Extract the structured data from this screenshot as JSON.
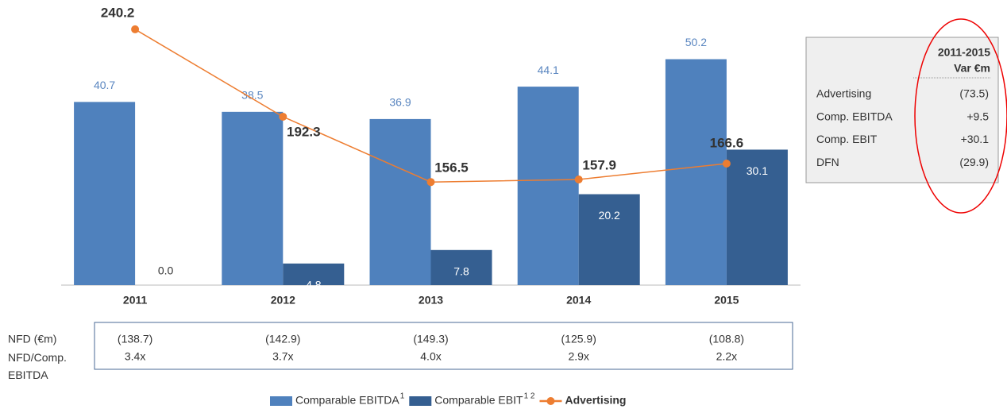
{
  "chart_data": {
    "type": "bar",
    "categories": [
      "2011",
      "2012",
      "2013",
      "2014",
      "2015"
    ],
    "series": [
      {
        "name": "Comparable EBITDA",
        "footnote": "1",
        "color": "#4f81bd",
        "values": [
          40.7,
          38.5,
          36.9,
          44.1,
          50.2
        ]
      },
      {
        "name": "Comparable EBIT",
        "footnote": "1 2",
        "color": "#355f91",
        "values": [
          0,
          4.8,
          7.8,
          20.2,
          30.1
        ],
        "value_labels": [
          "0.0",
          "4.8",
          "7.8",
          "20.2",
          "30.1"
        ]
      },
      {
        "name": "Advertising",
        "type": "line",
        "axis": "y2",
        "color": "#ed7d31",
        "values": [
          240.2,
          192.3,
          156.5,
          157.9,
          166.6
        ]
      }
    ],
    "ylim": [
      0,
      60
    ],
    "y2lim": [
      100,
      248
    ],
    "legend": "bottom"
  },
  "summary_table": {
    "header": [
      "2011-2015",
      "Var €m"
    ],
    "rows": [
      [
        "Advertising",
        "(73.5)"
      ],
      [
        "Comp. EBITDA",
        "+9.5"
      ],
      [
        "Comp. EBIT",
        "+30.1"
      ],
      [
        "DFN",
        "(29.9)"
      ]
    ]
  },
  "nfd_table": {
    "rows": [
      {
        "label": "NFD (€m)",
        "values": [
          "(138.7)",
          "(142.9)",
          "(149.3)",
          "(125.9)",
          "(108.8)"
        ]
      },
      {
        "label": "NFD/Comp. EBITDA",
        "values": [
          "3.4x",
          "3.7x",
          "4.0x",
          "2.9x",
          "2.2x"
        ]
      }
    ]
  }
}
